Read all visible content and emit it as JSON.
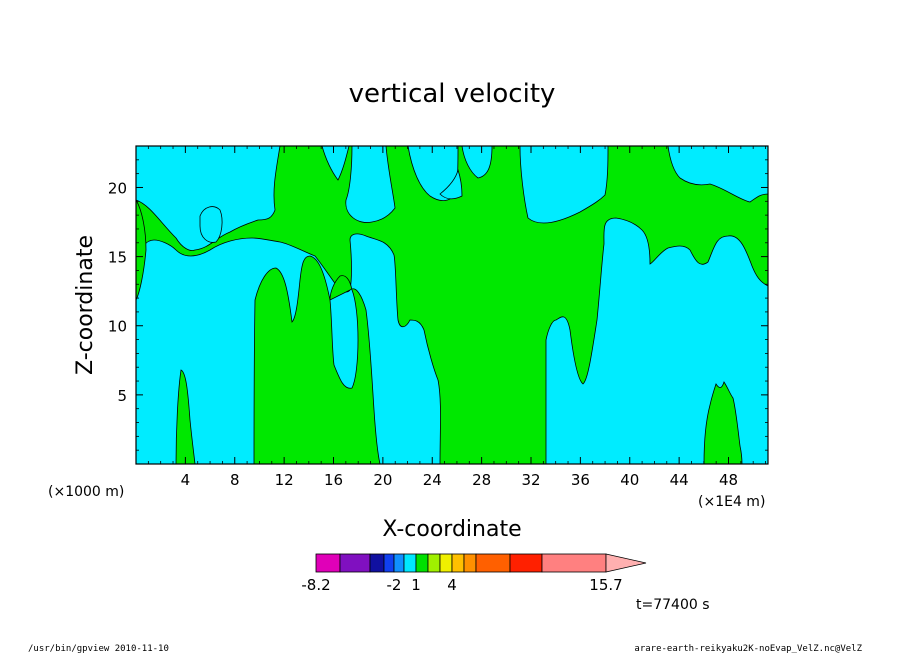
{
  "chart_data": {
    "type": "heatmap",
    "title": "vertical velocity",
    "xlabel": "X-coordinate",
    "ylabel": "Z-coordinate",
    "x_unit_left": "(×1000 m)",
    "x_unit_right": "(×1E4 m)",
    "x_ticks": [
      "4",
      "8",
      "12",
      "16",
      "20",
      "24",
      "28",
      "32",
      "36",
      "40",
      "44",
      "48"
    ],
    "x_tick_values": [
      4,
      8,
      12,
      16,
      20,
      24,
      28,
      32,
      36,
      40,
      44,
      48
    ],
    "xlim": [
      0,
      51.2
    ],
    "y_ticks": [
      "5",
      "10",
      "15",
      "20"
    ],
    "y_tick_values": [
      5,
      10,
      15,
      20
    ],
    "ylim": [
      0,
      23
    ],
    "grid": false,
    "field_colors": {
      "negative": "#00ecff",
      "positive": "#00e800",
      "contour": "#000000"
    },
    "colorbar": {
      "colors": [
        "#e000b8",
        "#8010c0",
        "#1010a0",
        "#1040f0",
        "#1090ff",
        "#00e8ff",
        "#00e000",
        "#a0f000",
        "#f0f000",
        "#ffc000",
        "#ff9000",
        "#ff6000",
        "#ff2000",
        "#ff8080",
        "#ffb0b0"
      ],
      "labels": [
        "-8.2",
        "-2",
        "1",
        "4",
        "15.7"
      ],
      "label_values": [
        -8.2,
        -2,
        1,
        4,
        15.7
      ]
    },
    "time_label": "t=77400 s"
  },
  "footer": {
    "left": "/usr/bin/gpview  2010-11-10",
    "right": "arare-earth-reikyaku2K-noEvap_VelZ.nc@VelZ"
  }
}
